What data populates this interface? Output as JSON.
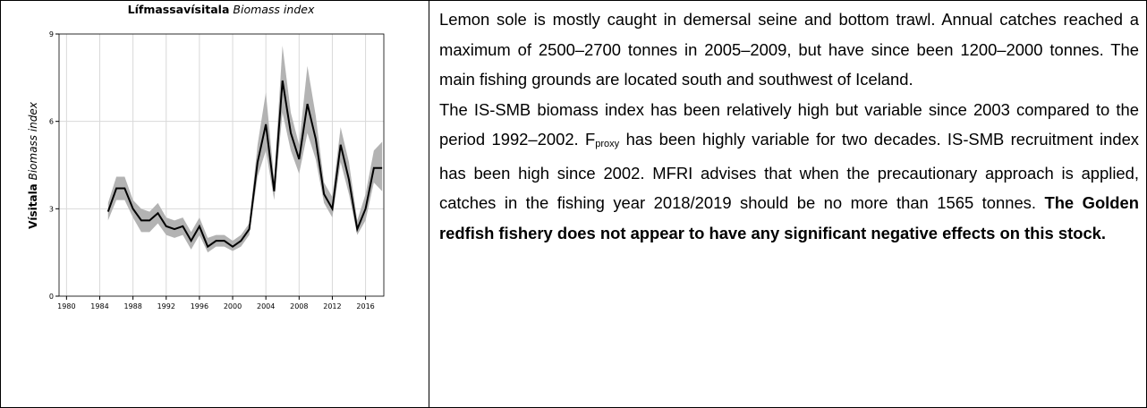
{
  "chart_data": {
    "type": "line",
    "title": {
      "bold": "Lífmassavísitala",
      "italic": "Biomass index"
    },
    "y_label": {
      "bold": "Vísitala",
      "italic": "Biomass index"
    },
    "x": [
      1985,
      1986,
      1987,
      1988,
      1989,
      1990,
      1991,
      1992,
      1993,
      1994,
      1995,
      1996,
      1997,
      1998,
      1999,
      2000,
      2001,
      2002,
      2003,
      2004,
      2005,
      2006,
      2007,
      2008,
      2009,
      2010,
      2011,
      2012,
      2013,
      2014,
      2015,
      2016,
      2017,
      2018
    ],
    "series": [
      {
        "color": "#000000",
        "values": [
          2.9,
          3.7,
          3.7,
          3.0,
          2.6,
          2.6,
          2.85,
          2.4,
          2.3,
          2.4,
          1.9,
          2.4,
          1.7,
          1.9,
          1.9,
          1.7,
          1.9,
          2.3,
          4.6,
          5.9,
          3.6,
          7.4,
          5.6,
          4.7,
          6.6,
          5.4,
          3.5,
          3.0,
          5.2,
          4.0,
          2.3,
          3.0,
          4.4,
          4.4
        ]
      }
    ],
    "band": {
      "color": "#b3b3b3",
      "lower": [
        2.6,
        3.3,
        3.3,
        2.7,
        2.2,
        2.2,
        2.5,
        2.1,
        2.0,
        2.1,
        1.6,
        2.1,
        1.5,
        1.7,
        1.7,
        1.55,
        1.7,
        2.1,
        4.1,
        5.0,
        3.3,
        6.3,
        5.0,
        4.2,
        5.6,
        4.7,
        3.2,
        2.7,
        4.6,
        3.5,
        2.1,
        2.6,
        3.9,
        3.6
      ],
      "upper": [
        3.2,
        4.1,
        4.1,
        3.3,
        3.0,
        2.9,
        3.2,
        2.7,
        2.6,
        2.7,
        2.2,
        2.7,
        2.0,
        2.1,
        2.1,
        1.9,
        2.1,
        2.5,
        5.2,
        7.0,
        4.0,
        8.6,
        6.3,
        5.2,
        7.9,
        6.2,
        3.9,
        3.4,
        5.8,
        4.6,
        2.6,
        3.5,
        5.0,
        5.3
      ]
    },
    "xlim": [
      1979.1,
      2018.2
    ],
    "ylim": [
      0,
      9
    ],
    "xticks": [
      1980,
      1984,
      1988,
      1992,
      1996,
      2000,
      2004,
      2008,
      2012,
      2016
    ],
    "yticks": [
      0,
      3,
      6,
      9
    ],
    "grid": true
  },
  "text": {
    "paragraph_1": "Lemon sole is mostly caught in demersal seine and bottom trawl. Annual catches reached a maximum of 2500–2700 tonnes in 2005–2009, but have since been 1200–2000 tonnes. The main fishing grounds are located south and southwest of Iceland.",
    "paragraph_2": [
      "The IS-SMB biomass index has been relatively high but variable since 2003 compared to the period 1992–2002. F",
      "proxy",
      " has been highly variable for two decades. IS-SMB recruitment index has been high since 2002. MFRI advises that when the precautionary approach is applied, catches in the fishing year 2018/2019 should be no more than 1565 tonnes. ",
      "The Golden redfish fishery does not appear to have any significant negative effects on this stock."
    ]
  }
}
